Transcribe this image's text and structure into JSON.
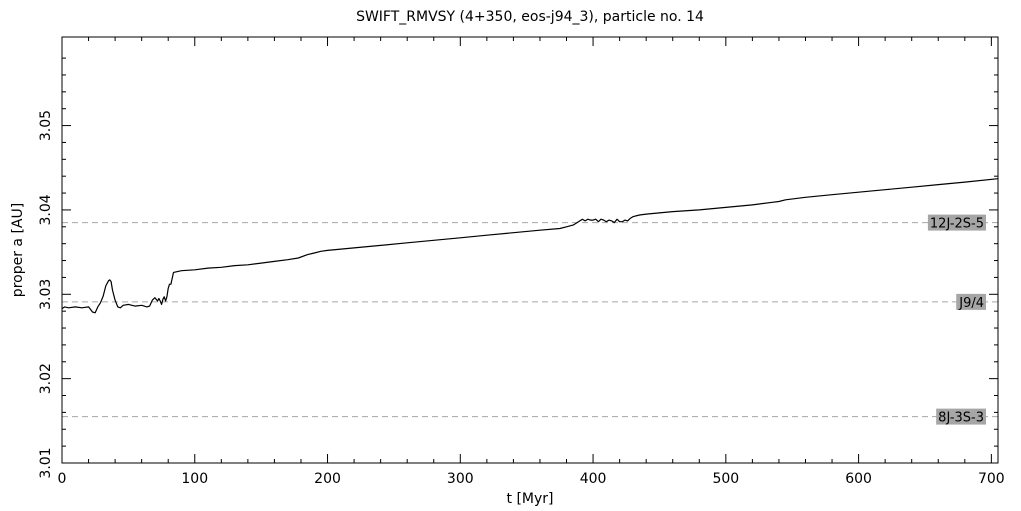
{
  "chart_data": {
    "type": "line",
    "title": "SWIFT_RMVSY (4+350, eos-j94_3), particle no. 14",
    "xlabel": "t [Myr]",
    "ylabel": "proper a [AU]",
    "xlim": [
      0,
      705
    ],
    "ylim": [
      3.01,
      3.0605
    ],
    "x_ticks": [
      0,
      100,
      200,
      300,
      400,
      500,
      600,
      700
    ],
    "x_tick_labels": [
      "0",
      "100",
      "200",
      "300",
      "400",
      "500",
      "600",
      "700"
    ],
    "y_ticks": [
      3.01,
      3.02,
      3.03,
      3.04,
      3.05
    ],
    "y_tick_labels": [
      "3.01",
      "3.02",
      "3.03",
      "3.04",
      "3.05"
    ],
    "grid": false,
    "resonances": [
      {
        "label": "12J-2S-5",
        "a": 3.0385
      },
      {
        "label": "J9/4",
        "a": 3.0291
      },
      {
        "label": "8J-3S-3",
        "a": 3.0155
      }
    ],
    "series": [
      {
        "x": [
          0,
          2,
          5,
          10,
          15,
          20,
          23,
          25,
          27,
          29,
          31,
          33,
          35,
          36,
          37,
          38,
          40,
          42,
          44,
          46,
          50,
          55,
          60,
          64,
          66,
          68,
          70,
          72,
          73,
          74,
          75,
          76,
          77,
          78,
          79,
          80,
          81,
          82,
          84,
          90,
          100,
          110,
          120,
          130,
          140,
          150,
          160,
          170,
          178,
          185,
          190,
          195,
          200,
          220,
          240,
          260,
          280,
          300,
          320,
          340,
          360,
          375,
          380,
          385,
          388,
          390,
          392,
          394,
          396,
          398,
          400,
          402,
          404,
          406,
          408,
          410,
          412,
          414,
          416,
          418,
          420,
          422,
          424,
          426,
          428,
          430,
          435,
          440,
          460,
          480,
          500,
          520,
          535,
          540,
          545,
          560,
          580,
          600,
          620,
          640,
          660,
          680,
          705
        ],
        "y": [
          3.0283,
          3.0285,
          3.0284,
          3.0285,
          3.0284,
          3.0285,
          3.0279,
          3.0278,
          3.0285,
          3.029,
          3.0298,
          3.031,
          3.0316,
          3.0317,
          3.0315,
          3.0305,
          3.0293,
          3.0285,
          3.0284,
          3.0287,
          3.0288,
          3.0286,
          3.0287,
          3.0285,
          3.0286,
          3.0293,
          3.0296,
          3.0292,
          3.0295,
          3.0292,
          3.0288,
          3.0294,
          3.0297,
          3.0292,
          3.0297,
          3.0307,
          3.0312,
          3.0312,
          3.0326,
          3.0328,
          3.0329,
          3.0331,
          3.0332,
          3.0334,
          3.0335,
          3.0337,
          3.0339,
          3.0341,
          3.0343,
          3.0347,
          3.0349,
          3.0351,
          3.0352,
          3.0355,
          3.0358,
          3.0361,
          3.0364,
          3.0367,
          3.037,
          3.0373,
          3.0376,
          3.0378,
          3.038,
          3.0382,
          3.0385,
          3.0387,
          3.0389,
          3.0387,
          3.0389,
          3.0388,
          3.0388,
          3.0389,
          3.0386,
          3.0389,
          3.0388,
          3.0386,
          3.0388,
          3.0387,
          3.0385,
          3.0389,
          3.0386,
          3.0386,
          3.0388,
          3.0387,
          3.039,
          3.0392,
          3.0394,
          3.0395,
          3.0398,
          3.04,
          3.0403,
          3.0406,
          3.0409,
          3.041,
          3.0412,
          3.0415,
          3.0418,
          3.0421,
          3.0424,
          3.0427,
          3.043,
          3.0433,
          3.0437
        ]
      }
    ]
  }
}
